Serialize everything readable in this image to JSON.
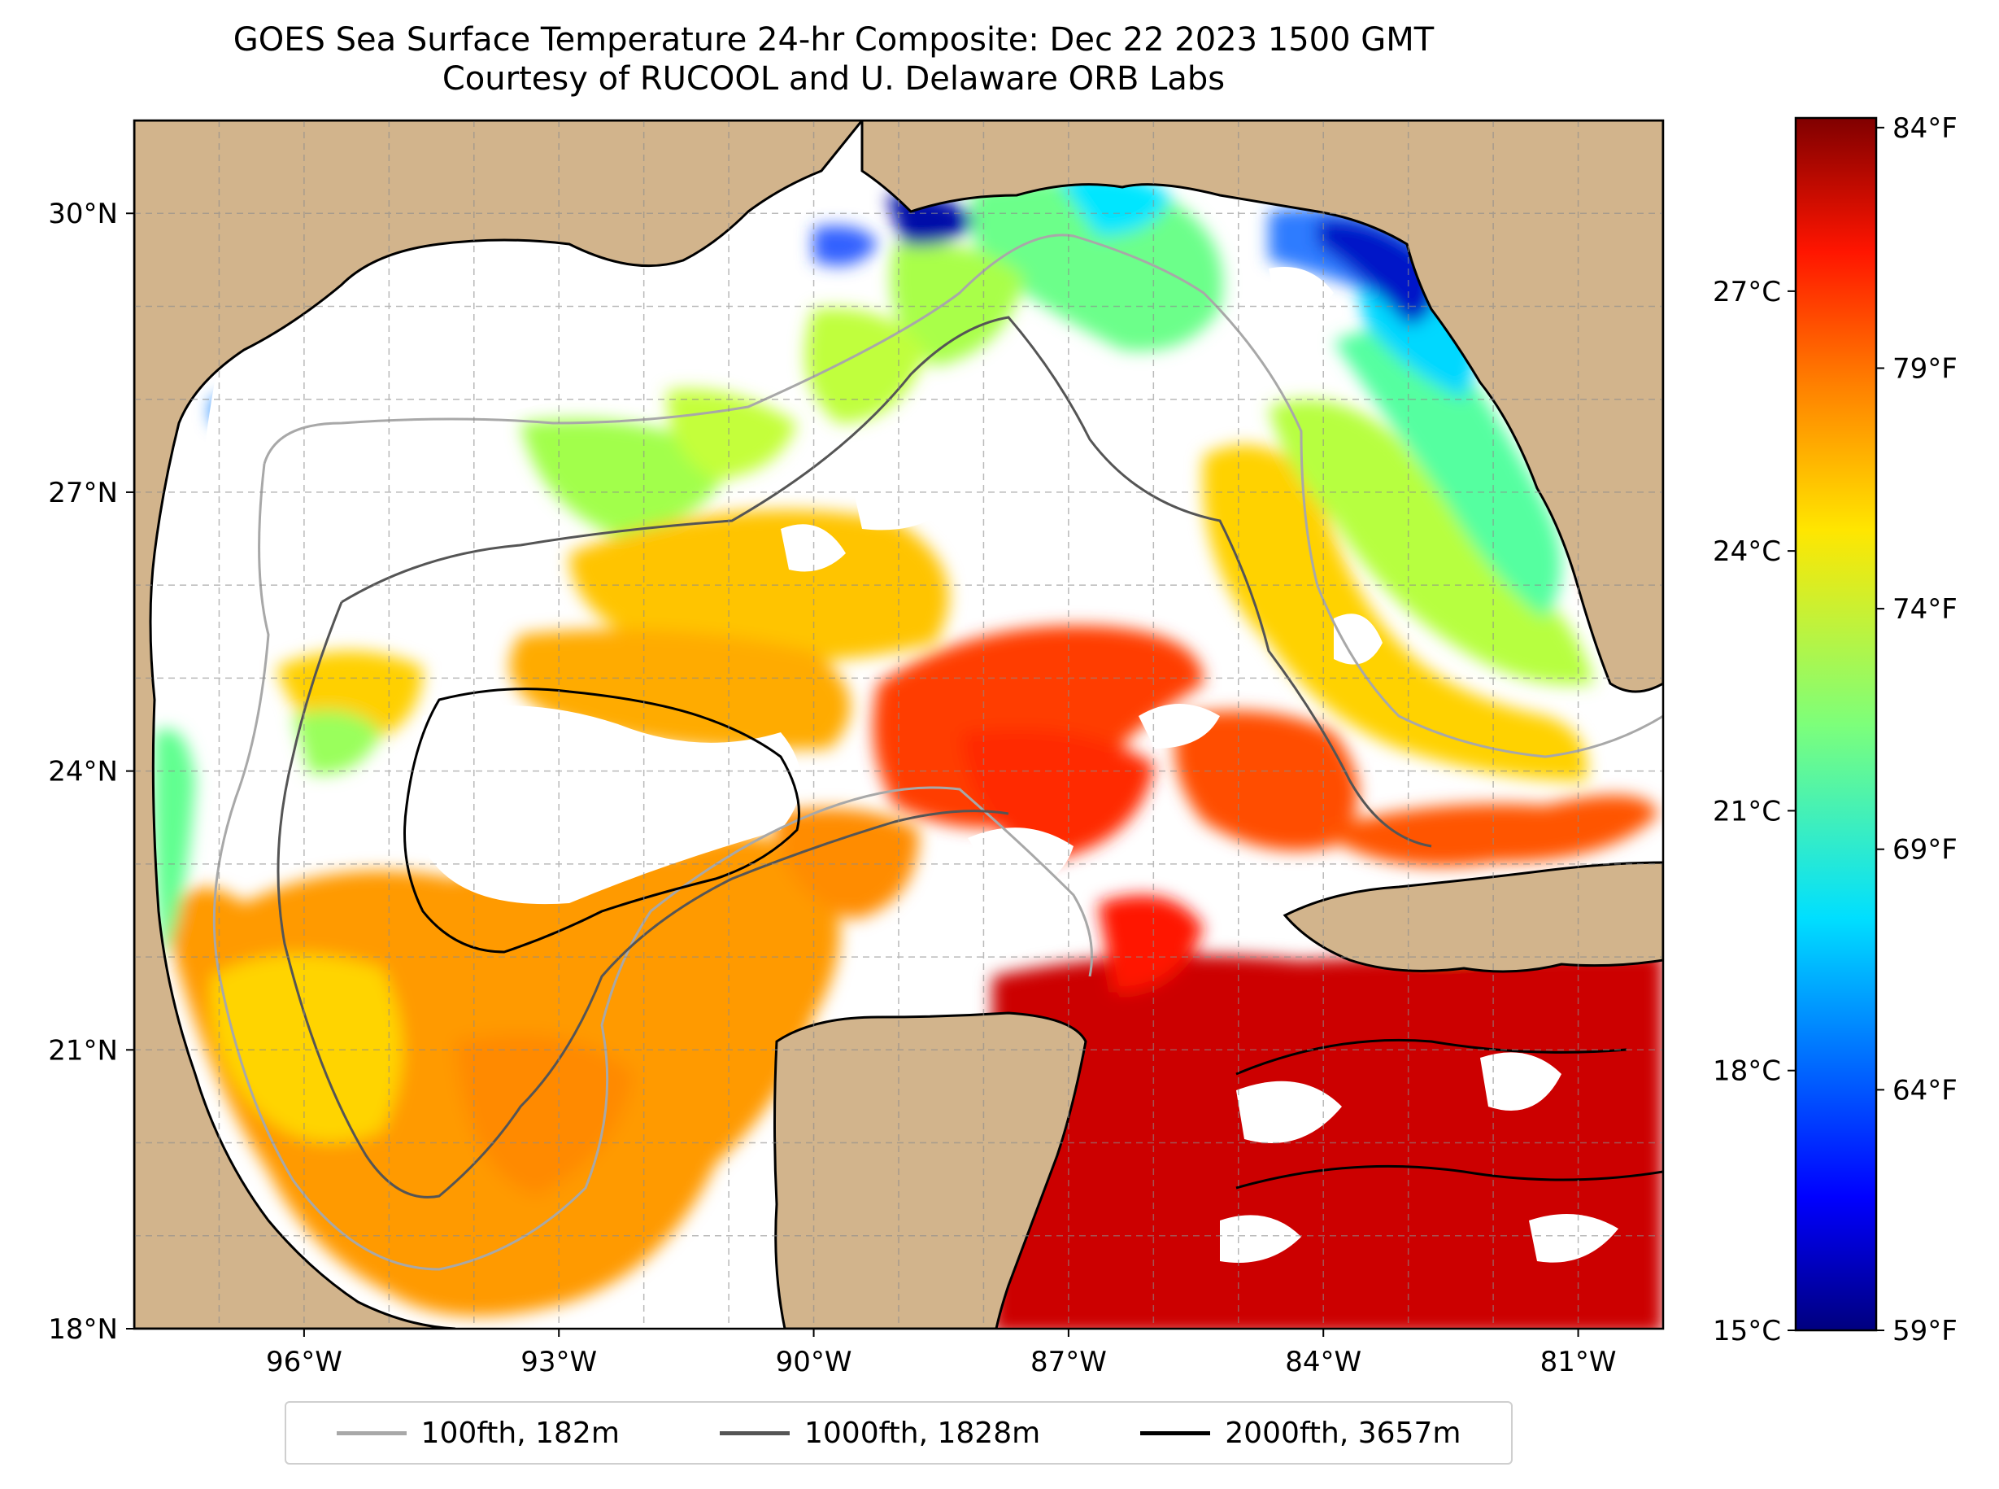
{
  "title_line1": "GOES Sea Surface Temperature 24-hr Composite: Dec 22 2023 1500 GMT",
  "title_line2": "Courtesy of RUCOOL and U. Delaware ORB Labs",
  "map": {
    "lon_range": [
      -98,
      -80
    ],
    "lat_range": [
      18,
      31
    ],
    "lon_ticks": [
      "96°W",
      "93°W",
      "90°W",
      "87°W",
      "84°W",
      "81°W"
    ],
    "lon_tick_values": [
      -96,
      -93,
      -90,
      -87,
      -84,
      -81
    ],
    "lat_ticks": [
      "18°N",
      "21°N",
      "24°N",
      "27°N",
      "30°N"
    ],
    "lat_tick_values": [
      18,
      21,
      24,
      27,
      30
    ],
    "grid": true,
    "land_color": "#d2b48c",
    "no_data_color": "#ffffff"
  },
  "colorbar": {
    "colormap": "jet",
    "range_c": [
      15,
      29
    ],
    "celsius_ticks": [
      "15°C",
      "18°C",
      "21°C",
      "24°C",
      "27°C"
    ],
    "celsius_values": [
      15,
      18,
      21,
      24,
      27
    ],
    "fahrenheit_ticks": [
      "59°F",
      "64°F",
      "69°F",
      "74°F",
      "79°F",
      "84°F"
    ],
    "fahrenheit_values": [
      59,
      64,
      69,
      74,
      79,
      84
    ]
  },
  "legend": [
    {
      "label": "100fth, 182m",
      "color": "#a8a8a8"
    },
    {
      "label": "1000fth, 1828m",
      "color": "#555555"
    },
    {
      "label": "2000fth, 3657m",
      "color": "#000000"
    }
  ]
}
